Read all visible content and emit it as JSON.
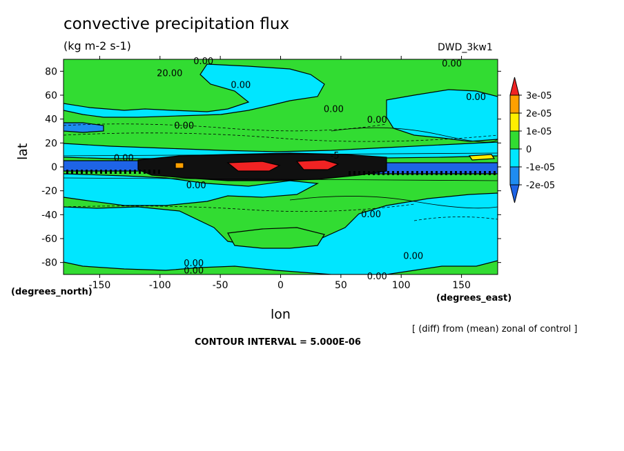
{
  "title": "convective precipitation flux",
  "units": "(kg m-2 s-1)",
  "model": "DWD_3kw1",
  "note": "[ (diff) from (mean) zonal of control ]",
  "contour_interval": "CONTOUR INTERVAL = 5.000E-06",
  "colors": {
    "c_neg2": "#1e8cf0",
    "c_neg1": "#00e6ff",
    "c_zero": "#32dc32",
    "c_pos1": "#ffee00",
    "c_pos2": "#ffa000",
    "c_pos3": "#f02323",
    "c_blue": "#1e64e6",
    "c_dark": "#101010"
  },
  "chart_data": {
    "type": "heatmap",
    "title": "convective precipitation flux",
    "subtitle": "(kg m-2 s-1)",
    "xlabel": "lon",
    "ylabel": "lat",
    "x_units_label": "(degrees_east)",
    "y_units_label": "(degrees_north)",
    "xlim": [
      -180,
      180
    ],
    "ylim": [
      -90,
      90
    ],
    "xticks": [
      -150,
      -100,
      -50,
      0,
      50,
      100,
      150
    ],
    "yticks": [
      80,
      60,
      40,
      20,
      0,
      -20,
      -40,
      -60,
      -80
    ],
    "colorbar": {
      "labels": [
        "3e-05",
        "2e-05",
        "1e-05",
        "0",
        "-1e-05",
        "-2e-05"
      ],
      "values": [
        3e-05,
        2e-05,
        1e-05,
        0,
        -1e-05,
        -2e-05
      ],
      "colors": [
        "#f02323",
        "#ffa000",
        "#ffee00",
        "#32dc32",
        "#00e6ff",
        "#1e8cf0",
        "#1e64e6"
      ]
    },
    "contour_labels": [
      {
        "text": "0.00",
        "lon": -64,
        "lat": 88
      },
      {
        "text": "0.00",
        "lon": 142,
        "lat": 86
      },
      {
        "text": "20.00",
        "lon": -92,
        "lat": 78
      },
      {
        "text": "0.00",
        "lon": -33,
        "lat": 68
      },
      {
        "text": "0.00",
        "lon": 162,
        "lat": 58
      },
      {
        "text": "0.00",
        "lon": 44,
        "lat": 48
      },
      {
        "text": "0.00",
        "lon": 80,
        "lat": 39
      },
      {
        "text": "0.00",
        "lon": -80,
        "lat": 34
      },
      {
        "text": "0.00",
        "lon": -130,
        "lat": 7
      },
      {
        "text": "-5",
        "lon": 45,
        "lat": 9
      },
      {
        "text": "0.00",
        "lon": -70,
        "lat": -16
      },
      {
        "text": "0.00",
        "lon": 75,
        "lat": -40
      },
      {
        "text": "0.00",
        "lon": 110,
        "lat": -75
      },
      {
        "text": "0.00",
        "lon": -72,
        "lat": -81
      },
      {
        "text": "0.00",
        "lon": -72,
        "lat": -87
      },
      {
        "text": "0.00",
        "lon": 80,
        "lat": -92
      }
    ]
  }
}
